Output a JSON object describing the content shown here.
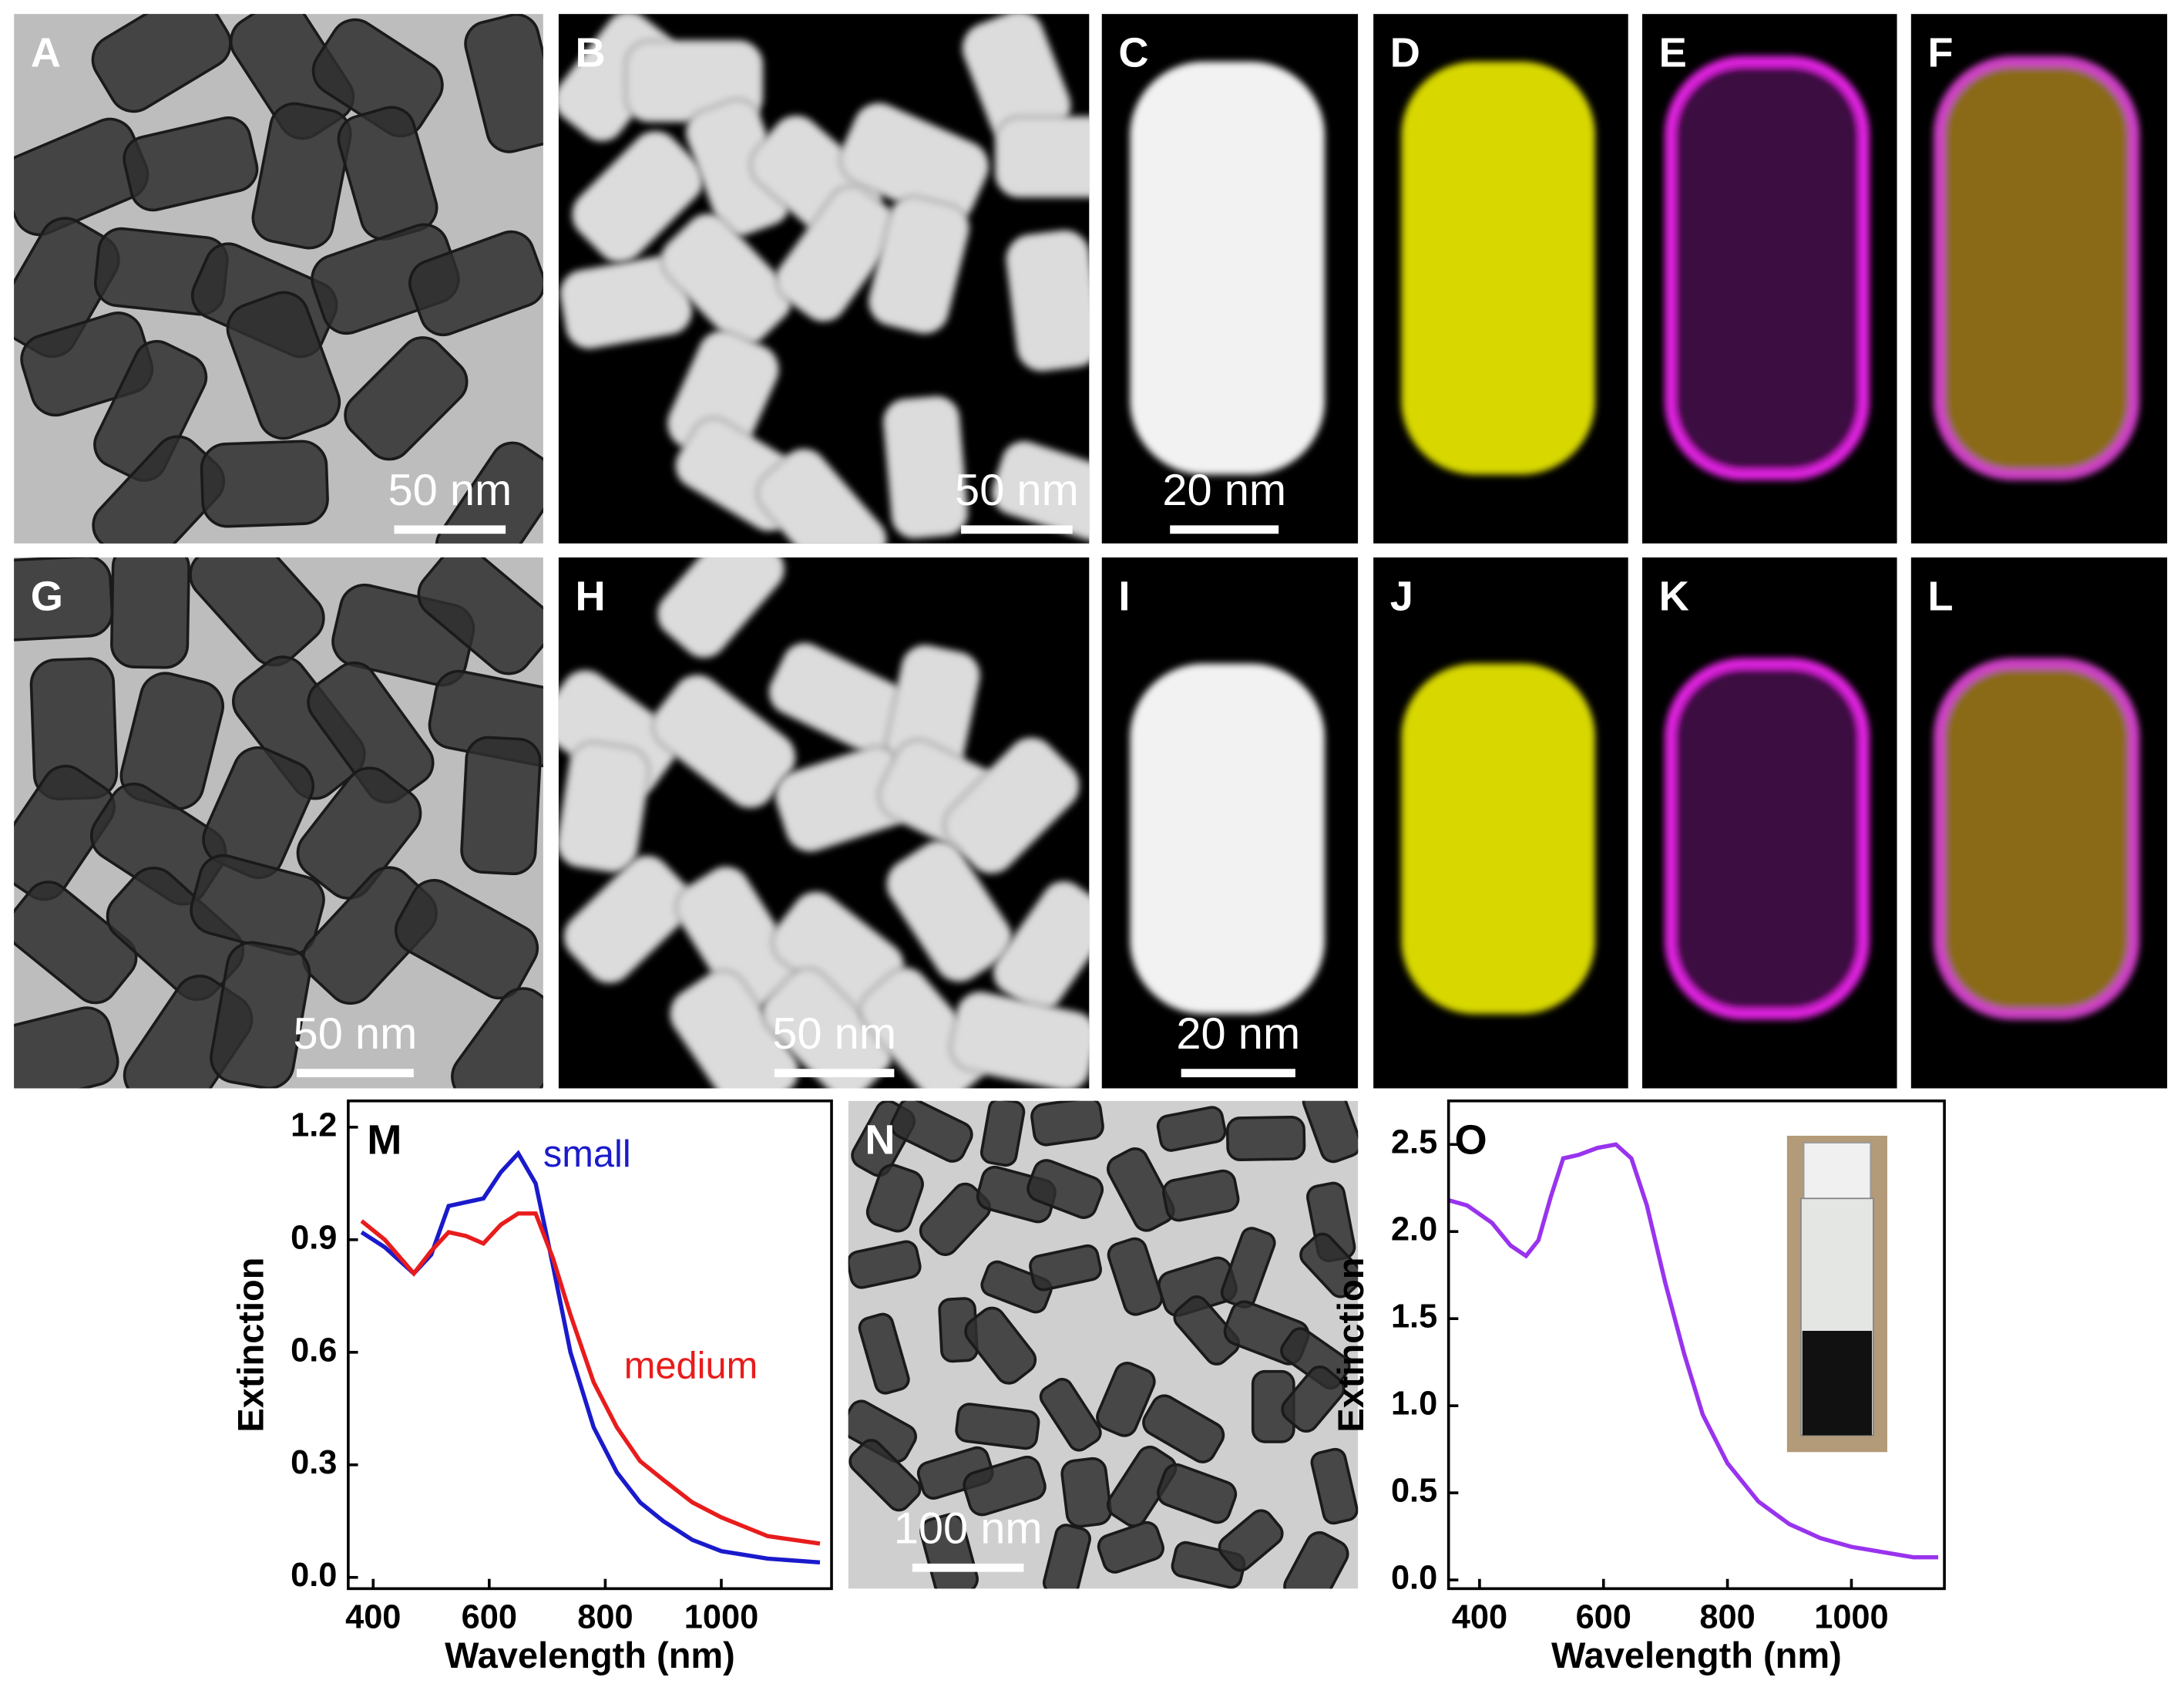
{
  "panels": [
    {
      "label": "A",
      "scale_bar": "50 nm"
    },
    {
      "label": "B",
      "scale_bar": "50 nm"
    },
    {
      "label": "C",
      "scale_bar": "20 nm"
    },
    {
      "label": "D"
    },
    {
      "label": "E"
    },
    {
      "label": "F"
    },
    {
      "label": "G",
      "scale_bar": "50 nm"
    },
    {
      "label": "H",
      "scale_bar": "50 nm"
    },
    {
      "label": "I",
      "scale_bar": "20 nm"
    },
    {
      "label": "J"
    },
    {
      "label": "K"
    },
    {
      "label": "L"
    },
    {
      "label": "M"
    },
    {
      "label": "N",
      "scale_bar": "100 nm"
    },
    {
      "label": "O"
    }
  ],
  "chart_data": [
    {
      "type": "line",
      "xlabel": "Wavelength (nm)",
      "ylabel": "Extinction",
      "x": [
        380,
        420,
        470,
        500,
        530,
        560,
        590,
        620,
        650,
        680,
        710,
        740,
        780,
        820,
        860,
        900,
        950,
        1000,
        1080,
        1170
      ],
      "series": [
        {
          "name": "small",
          "color": "#1a1acc",
          "values": [
            0.92,
            0.88,
            0.81,
            0.86,
            0.99,
            1.0,
            1.01,
            1.08,
            1.13,
            1.05,
            0.83,
            0.6,
            0.4,
            0.28,
            0.2,
            0.15,
            0.1,
            0.07,
            0.05,
            0.04
          ]
        },
        {
          "name": "medium",
          "color": "#e81c1c",
          "values": [
            0.95,
            0.9,
            0.81,
            0.87,
            0.92,
            0.91,
            0.89,
            0.94,
            0.97,
            0.97,
            0.85,
            0.7,
            0.52,
            0.4,
            0.31,
            0.26,
            0.2,
            0.16,
            0.11,
            0.09
          ]
        }
      ],
      "xlim": [
        357,
        1190
      ],
      "ylim": [
        -0.03,
        1.27
      ],
      "xticks": [
        400,
        600,
        800,
        1000
      ],
      "yticks": [
        {
          "value": 0,
          "label": "0.0"
        },
        0.3,
        0.6,
        0.9,
        1.2
      ]
    },
    {
      "type": "line",
      "xlabel": "Wavelength (nm)",
      "ylabel": "Extinction",
      "x": [
        350,
        380,
        420,
        450,
        475,
        495,
        515,
        535,
        560,
        590,
        620,
        645,
        670,
        700,
        730,
        760,
        800,
        850,
        900,
        950,
        1000,
        1050,
        1100,
        1140
      ],
      "series": [
        {
          "color": "#9933ee",
          "values": [
            2.18,
            2.15,
            2.05,
            1.92,
            1.86,
            1.95,
            2.2,
            2.42,
            2.44,
            2.48,
            2.5,
            2.42,
            2.15,
            1.7,
            1.3,
            0.95,
            0.67,
            0.45,
            0.32,
            0.24,
            0.19,
            0.16,
            0.13,
            0.13
          ]
        }
      ],
      "xlim": [
        350,
        1150
      ],
      "ylim": [
        -0.05,
        2.75
      ],
      "xticks": [
        400,
        600,
        800,
        1000
      ],
      "yticks": [
        {
          "value": 0,
          "label": "0.0"
        },
        0.5,
        {
          "value": 1,
          "label": "1.0"
        },
        1.5,
        {
          "value": 2,
          "label": "2.0"
        },
        2.5
      ]
    }
  ]
}
